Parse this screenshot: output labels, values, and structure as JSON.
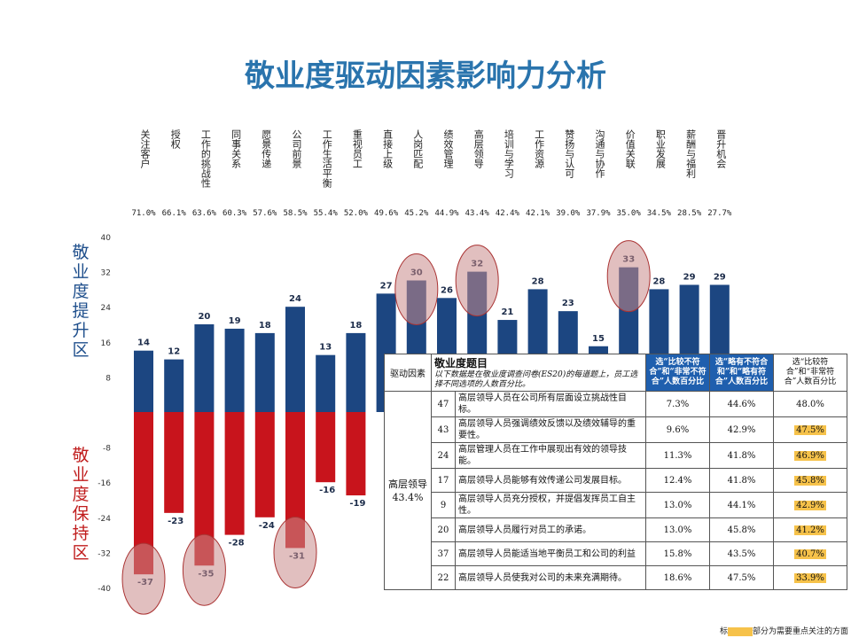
{
  "title": "敬业度驱动因素影响力分析",
  "side_labels": {
    "positive": "敬业度提升区",
    "negative": "敬业度保持区"
  },
  "colors": {
    "positive_bar": "#1c4681",
    "negative_bar": "#c8141c",
    "title": "#2a74ad",
    "highlight": "#f6c24a",
    "circle": "#c98a8a"
  },
  "chart_data": {
    "type": "bar",
    "categories": [
      "关注客户",
      "授权",
      "工作的挑战性",
      "同事关系",
      "愿景传递",
      "公司前景",
      "工作生活平衡",
      "重视员工",
      "直接上级",
      "人岗匹配",
      "绩效管理",
      "高层领导",
      "培训与学习",
      "工作资源",
      "赞扬与认可",
      "沟通与协作",
      "价值关联",
      "职业发展",
      "薪酬与福利",
      "晋升机会"
    ],
    "percent_labels": [
      "71.0%",
      "66.1%",
      "63.6%",
      "60.3%",
      "57.6%",
      "58.5%",
      "55.4%",
      "52.0%",
      "49.6%",
      "45.2%",
      "44.9%",
      "43.4%",
      "42.4%",
      "42.1%",
      "39.0%",
      "37.9%",
      "35.0%",
      "34.5%",
      "28.5%",
      "27.7%"
    ],
    "series": [
      {
        "values": [
          14,
          12,
          20,
          19,
          18,
          24,
          13,
          18,
          27,
          30,
          26,
          32,
          21,
          28,
          23,
          15,
          33,
          28,
          29,
          29
        ]
      },
      {
        "values": [
          -37,
          -23,
          -35,
          -28,
          -24,
          -31,
          -16,
          -19,
          null,
          null,
          null,
          null,
          null,
          null,
          null,
          null,
          null,
          null,
          null,
          null
        ]
      }
    ],
    "positive_value_labels": [
      "14",
      "12",
      "20",
      "19",
      "18",
      "24",
      "13",
      "18",
      "27",
      "30",
      "26",
      "32",
      "21",
      "28",
      "23",
      "15",
      "33",
      "28",
      "29",
      "29"
    ],
    "negative_value_labels": [
      "-37",
      "-23",
      "-35",
      "-28",
      "-24",
      "-31",
      "-16",
      "-19"
    ],
    "circled_categories": [
      "人岗匹配",
      "高层领导",
      "价值关联",
      "关注客户",
      "工作的挑战性",
      "公司前景"
    ],
    "ylim": [
      -40,
      40
    ],
    "yticks": [
      "40",
      "32",
      "24",
      "16",
      "8",
      "-8",
      "-16",
      "-24",
      "-32",
      "-40"
    ]
  },
  "table": {
    "header": {
      "factor": "驱动因素",
      "question_title": "敬业度题目",
      "question_sub": "以下数据是在敬业度调查问卷(ES20)的每道题上，员工选择不同选项的人数百分比。",
      "col1": "选“比较不符合”和“非常不符合”人数百分比",
      "col2": "选“略有不符合和”和“略有符合”人数百分比",
      "col3": "选“比较符合”和“非常符合”人数百分比"
    },
    "factor_name": "高层领导",
    "factor_pct": "43.4%",
    "rows": [
      {
        "no": "47",
        "q": "高层领导人员在公司所有层面设立挑战性目标。",
        "a": "7.3%",
        "b": "44.6%",
        "c": "48.0%",
        "hl": false
      },
      {
        "no": "43",
        "q": "高层领导人员强调绩效反馈以及绩效辅导的重要性。",
        "a": "9.6%",
        "b": "42.9%",
        "c": "47.5%",
        "hl": true
      },
      {
        "no": "24",
        "q": "高层管理人员在工作中展现出有效的领导技能。",
        "a": "11.3%",
        "b": "41.8%",
        "c": "46.9%",
        "hl": true
      },
      {
        "no": "17",
        "q": "高层领导人员能够有效传递公司发展目标。",
        "a": "12.4%",
        "b": "41.8%",
        "c": "45.8%",
        "hl": true
      },
      {
        "no": "9",
        "q": "高层领导人员充分授权，并提倡发挥员工自主性。",
        "a": "13.0%",
        "b": "44.1%",
        "c": "42.9%",
        "hl": true
      },
      {
        "no": "20",
        "q": "高层领导人员履行对员工的承诺。",
        "a": "13.0%",
        "b": "45.8%",
        "c": "41.2%",
        "hl": true
      },
      {
        "no": "37",
        "q": "高层领导人员能适当地平衡员工和公司的利益",
        "a": "15.8%",
        "b": "43.5%",
        "c": "40.7%",
        "hl": true
      },
      {
        "no": "22",
        "q": "高层领导人员使我对公司的未来充满期待。",
        "a": "18.6%",
        "b": "47.5%",
        "c": "33.9%",
        "hl": true
      }
    ]
  },
  "note": {
    "prefix": "标",
    "suffix": "部分为需要重点关注的方面"
  }
}
